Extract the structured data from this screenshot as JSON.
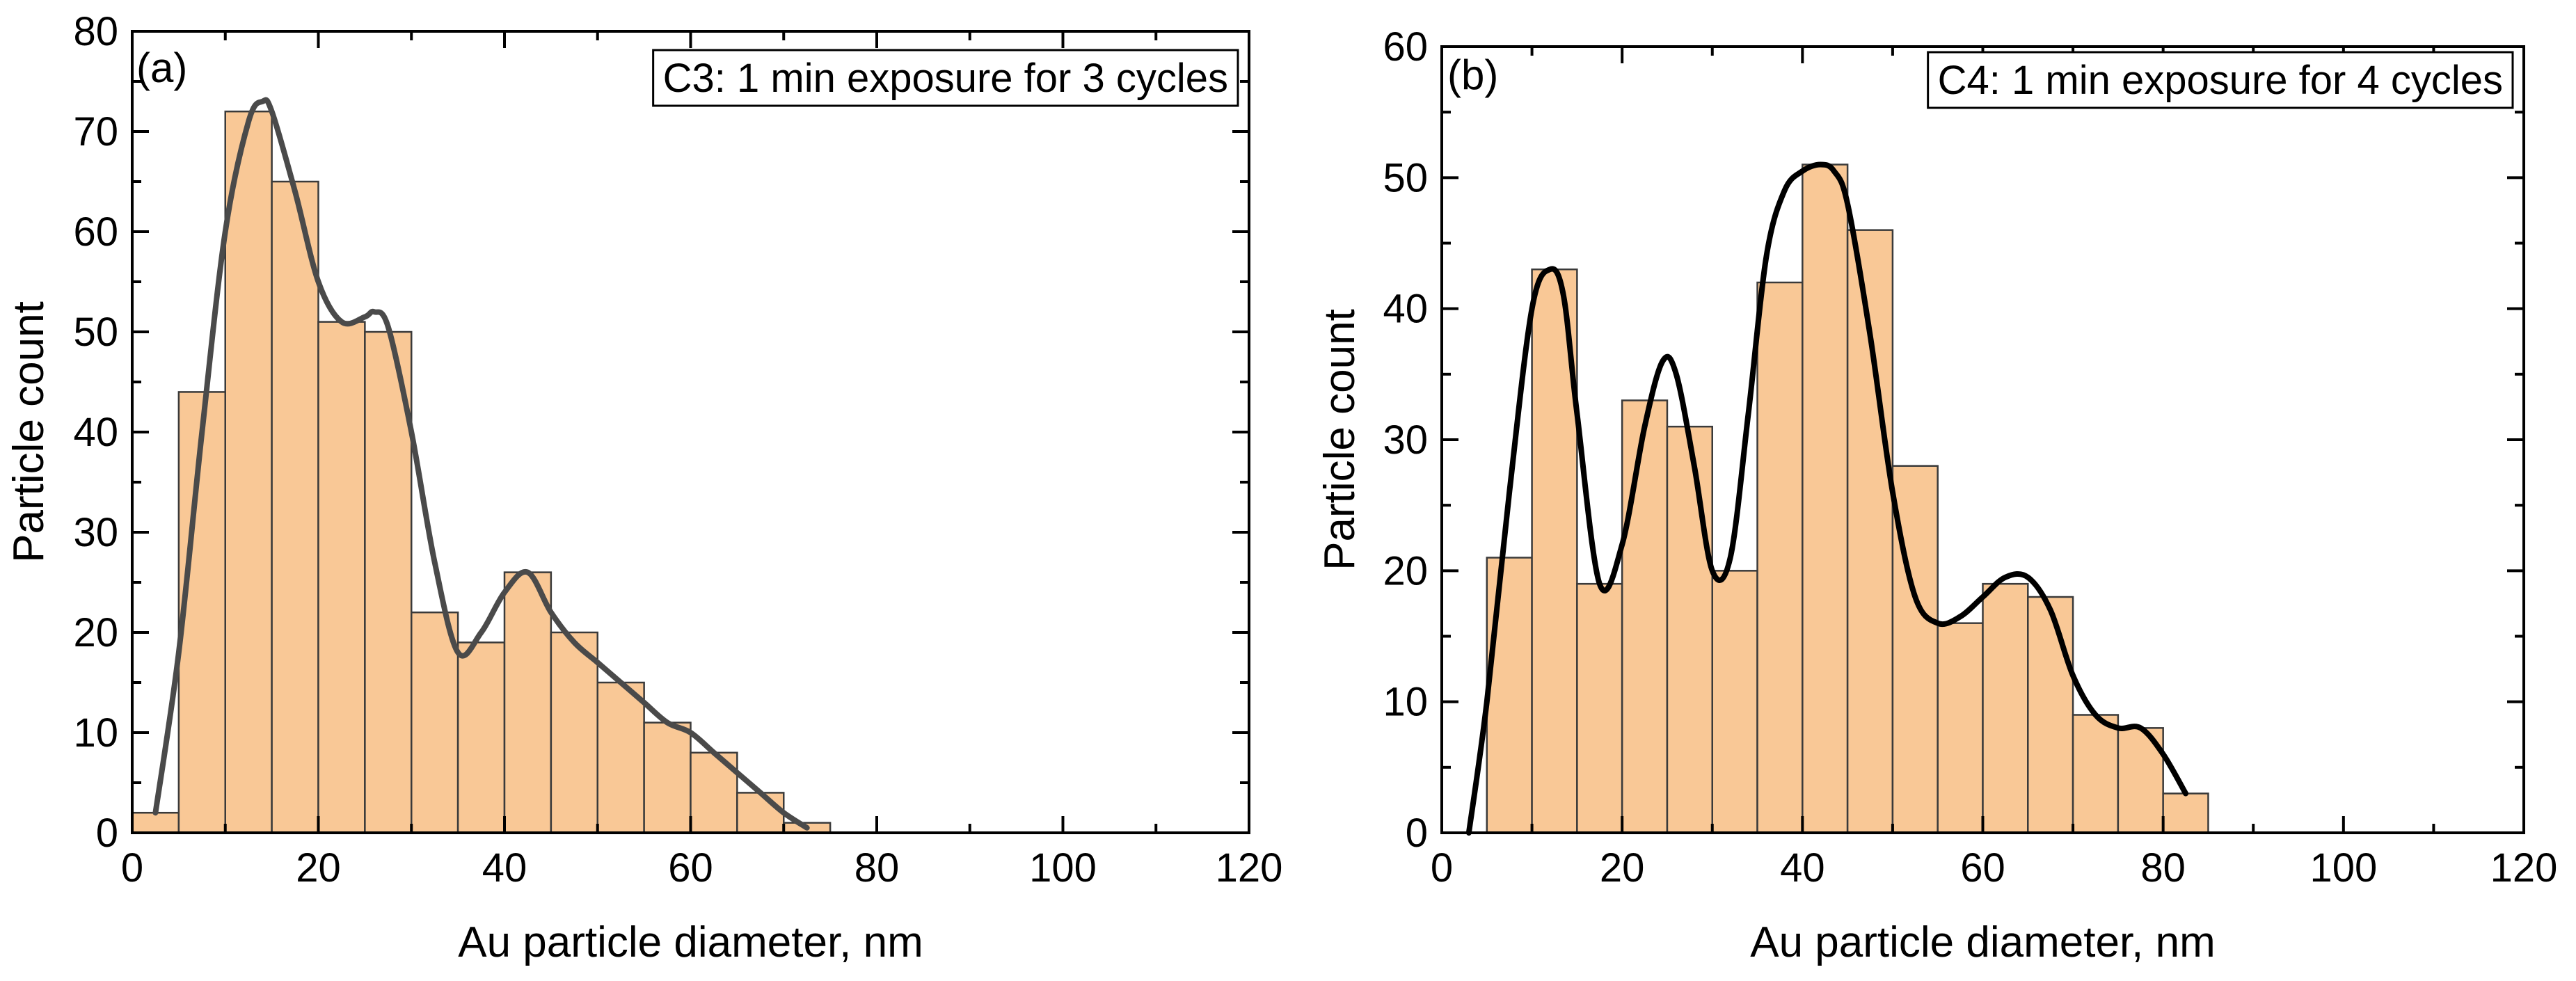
{
  "colors": {
    "bar_fill": "#f9c896",
    "bar_stroke": "#3a3a3a",
    "axis": "#000000",
    "curve_a": "#4a4a4a",
    "curve_b": "#000000"
  },
  "chart_data": [
    {
      "type": "bar",
      "panel_label": "(a)",
      "title": "C3: 1 min exposure for 3 cycles",
      "xlabel": "Au particle diameter, nm",
      "ylabel": "Particle count",
      "xlim": [
        0,
        120
      ],
      "ylim": [
        0,
        80
      ],
      "x_ticks": [
        "0",
        "20",
        "40",
        "60",
        "80",
        "100",
        "120"
      ],
      "y_ticks": [
        "0",
        "10",
        "20",
        "30",
        "40",
        "50",
        "60",
        "70",
        "80"
      ],
      "bin_width": 5,
      "bin_starts": [
        0,
        5,
        10,
        15,
        20,
        25,
        30,
        35,
        40,
        45,
        50,
        55,
        60,
        65,
        70
      ],
      "values": [
        2,
        44,
        72,
        65,
        51,
        50,
        22,
        19,
        26,
        20,
        15,
        11,
        8,
        4,
        1
      ],
      "fit_curve": {
        "x": [
          2.5,
          5,
          7.5,
          10,
          12.5,
          14,
          15,
          17.5,
          20,
          22.5,
          25,
          26,
          27.5,
          30,
          32.5,
          35,
          37.5,
          40,
          42.5,
          45,
          47.5,
          50,
          52.5,
          55,
          57.5,
          60,
          62.5,
          65,
          67.5,
          70,
          72.5
        ],
        "y": [
          2,
          18,
          40,
          60,
          71,
          73,
          72,
          64,
          55,
          51,
          51.5,
          52,
          50.5,
          40,
          27,
          18,
          20,
          24,
          26,
          22,
          19,
          17,
          15,
          13,
          11,
          10,
          8,
          6,
          4,
          2,
          0.5
        ]
      }
    },
    {
      "type": "bar",
      "panel_label": "(b)",
      "title": "C4: 1 min exposure for 4 cycles",
      "xlabel": "Au particle diameter, nm",
      "ylabel": "Particle count",
      "xlim": [
        0,
        120
      ],
      "ylim": [
        0,
        60
      ],
      "x_ticks": [
        "0",
        "20",
        "40",
        "60",
        "80",
        "100",
        "120"
      ],
      "y_ticks": [
        "0",
        "10",
        "20",
        "30",
        "40",
        "50",
        "60"
      ],
      "bin_width": 5,
      "bin_starts": [
        5,
        10,
        15,
        20,
        25,
        30,
        35,
        40,
        45,
        50,
        55,
        60,
        65,
        70,
        75,
        80
      ],
      "values": [
        21,
        43,
        19,
        33,
        31,
        20,
        42,
        51,
        46,
        28,
        16,
        19,
        18,
        9,
        8,
        3
      ],
      "fit_curve": {
        "x": [
          3,
          5,
          7.5,
          10,
          12,
          13.5,
          15,
          17.5,
          20,
          22.5,
          24.5,
          26,
          28,
          30,
          32,
          34,
          36,
          38,
          40,
          42,
          43.5,
          45,
          47.5,
          50,
          52.5,
          55,
          57.5,
          60,
          62.5,
          65,
          67.5,
          70,
          72.5,
          75,
          77.5,
          80,
          82.5
        ],
        "y": [
          0,
          10,
          26,
          40,
          43,
          41,
          32,
          19,
          22,
          31,
          36,
          35,
          28,
          20,
          21,
          32,
          44,
          49,
          50.5,
          51,
          50.5,
          48,
          38,
          26,
          18,
          16,
          16.5,
          18,
          19.5,
          19.5,
          17,
          12,
          9,
          8,
          8,
          6,
          3
        ]
      }
    }
  ]
}
